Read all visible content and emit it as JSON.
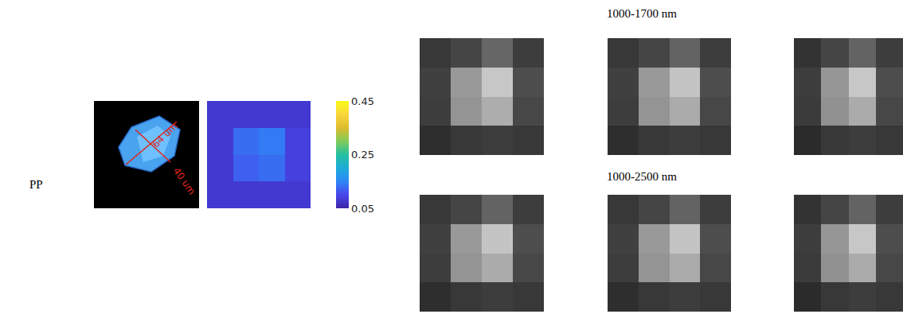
{
  "label": "PP",
  "particle": {
    "dimensions": [
      "64 um",
      "40 um"
    ]
  },
  "chart_data": [
    {
      "type": "heatmap",
      "tick_labels": false,
      "cells": [
        [
          0.08,
          0.08,
          0.08,
          0.08
        ],
        [
          0.08,
          0.13,
          0.14,
          0.09
        ],
        [
          0.08,
          0.12,
          0.13,
          0.09
        ],
        [
          0.08,
          0.08,
          0.08,
          0.08
        ]
      ],
      "colorbar": {
        "range": [
          0.05,
          0.45
        ],
        "ticks": [
          0.05,
          0.25,
          0.45
        ]
      }
    }
  ],
  "spectral_groups": [
    {
      "title": "1000-1700 nm",
      "chart_data": [
        {
          "type": "heatmap",
          "tick_labels": false,
          "zlim": [
            0,
            1
          ],
          "cells": [
            [
              0.22,
              0.27,
              0.4,
              0.24
            ],
            [
              0.25,
              0.6,
              0.78,
              0.3
            ],
            [
              0.24,
              0.58,
              0.68,
              0.28
            ],
            [
              0.18,
              0.22,
              0.24,
              0.22
            ]
          ]
        },
        {
          "type": "heatmap",
          "tick_labels": false,
          "zlim": [
            0,
            1
          ],
          "cells": [
            [
              0.22,
              0.27,
              0.39,
              0.24
            ],
            [
              0.25,
              0.6,
              0.77,
              0.3
            ],
            [
              0.24,
              0.58,
              0.67,
              0.28
            ],
            [
              0.18,
              0.22,
              0.24,
              0.22
            ]
          ]
        },
        {
          "type": "heatmap",
          "tick_labels": false,
          "zlim": [
            0,
            1
          ],
          "cells": [
            [
              0.2,
              0.27,
              0.39,
              0.24
            ],
            [
              0.24,
              0.59,
              0.78,
              0.3
            ],
            [
              0.23,
              0.57,
              0.67,
              0.28
            ],
            [
              0.17,
              0.22,
              0.24,
              0.22
            ]
          ]
        }
      ]
    },
    {
      "title": "1000-2500 nm",
      "chart_data": [
        {
          "type": "heatmap",
          "tick_labels": false,
          "zlim": [
            0,
            1
          ],
          "cells": [
            [
              0.22,
              0.27,
              0.39,
              0.24
            ],
            [
              0.25,
              0.6,
              0.77,
              0.3
            ],
            [
              0.24,
              0.58,
              0.67,
              0.28
            ],
            [
              0.18,
              0.22,
              0.24,
              0.22
            ]
          ]
        },
        {
          "type": "heatmap",
          "tick_labels": false,
          "zlim": [
            0,
            1
          ],
          "cells": [
            [
              0.22,
              0.27,
              0.39,
              0.24
            ],
            [
              0.25,
              0.6,
              0.77,
              0.3
            ],
            [
              0.24,
              0.58,
              0.67,
              0.28
            ],
            [
              0.18,
              0.22,
              0.24,
              0.22
            ]
          ]
        },
        {
          "type": "heatmap",
          "tick_labels": false,
          "zlim": [
            0,
            1
          ],
          "cells": [
            [
              0.2,
              0.27,
              0.39,
              0.24
            ],
            [
              0.24,
              0.59,
              0.78,
              0.3
            ],
            [
              0.23,
              0.57,
              0.67,
              0.28
            ],
            [
              0.17,
              0.22,
              0.24,
              0.22
            ]
          ]
        }
      ]
    }
  ]
}
